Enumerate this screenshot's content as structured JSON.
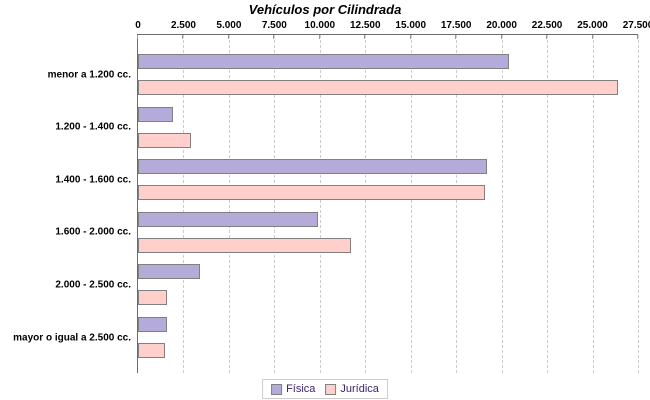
{
  "chart_data": {
    "type": "bar",
    "orientation": "horizontal",
    "title": "Vehículos por Cilindrada",
    "categories": [
      "menor a 1.200 cc.",
      "1.200 - 1.400 cc.",
      "1.400 - 1.600 cc.",
      "1.600 - 2.000 cc.",
      "2.000 - 2.500 cc.",
      "mayor o igual a 2.500 cc."
    ],
    "series": [
      {
        "name": "Física",
        "color": "#b5abdb",
        "values": [
          20400,
          1900,
          19200,
          9900,
          3400,
          1600
        ]
      },
      {
        "name": "Jurídica",
        "color": "#ffcfcc",
        "values": [
          26400,
          2900,
          19100,
          11700,
          1600,
          1500
        ]
      }
    ],
    "xlim": [
      0,
      27500
    ],
    "x_ticks": [
      0,
      2500,
      5000,
      7500,
      10000,
      12500,
      15000,
      17500,
      20000,
      22500,
      25000,
      27500
    ],
    "x_tick_labels": [
      "0",
      "2.500",
      "5.000",
      "7.500",
      "10.000",
      "12.500",
      "15.000",
      "17.500",
      "20.000",
      "22.500",
      "25.000",
      "27.500"
    ],
    "grid": "vertical-dashed",
    "legend_position": "bottom-center"
  },
  "colors": {
    "fisica_fill": "#b5abdb",
    "juridica_fill": "#ffcfcc",
    "bar_border": "#808080",
    "axis": "#6b6b6b",
    "gridline": "#cccccc",
    "tick": "#999999",
    "legend_border": "#cccccc",
    "legend_text": "#3d2368",
    "title_text": "#000000"
  }
}
